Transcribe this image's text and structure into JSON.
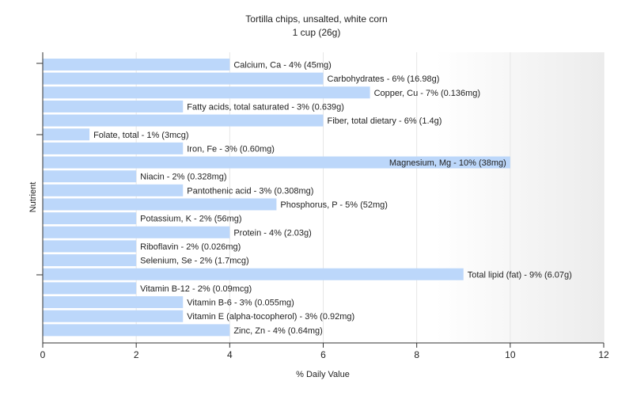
{
  "chart_data": {
    "type": "bar",
    "orientation": "horizontal",
    "title": "Tortilla chips, unsalted, white corn",
    "subtitle": "1 cup (26g)",
    "xlabel": "% Daily Value",
    "ylabel": "Nutrient",
    "xlim": [
      0,
      12
    ],
    "xticks": [
      0,
      2,
      4,
      6,
      8,
      10,
      12
    ],
    "grid": "vertical",
    "bar_color": "#bcd7fa",
    "categories": [
      "Calcium, Ca",
      "Carbohydrates",
      "Copper, Cu",
      "Fatty acids, total saturated",
      "Fiber, total dietary",
      "Folate, total",
      "Iron, Fe",
      "Magnesium, Mg",
      "Niacin",
      "Pantothenic acid",
      "Phosphorus, P",
      "Potassium, K",
      "Protein",
      "Riboflavin",
      "Selenium, Se",
      "Total lipid (fat)",
      "Vitamin B-12",
      "Vitamin B-6",
      "Vitamin E (alpha-tocopherol)",
      "Zinc, Zn"
    ],
    "values": [
      4,
      6,
      7,
      3,
      6,
      1,
      3,
      10,
      2,
      3,
      5,
      2,
      4,
      2,
      2,
      9,
      2,
      3,
      3,
      4
    ],
    "labels": [
      "Calcium, Ca - 4% (45mg)",
      "Carbohydrates - 6% (16.98g)",
      "Copper, Cu - 7% (0.136mg)",
      "Fatty acids, total saturated - 3% (0.639g)",
      "Fiber, total dietary - 6% (1.4g)",
      "Folate, total - 1% (3mcg)",
      "Iron, Fe - 3% (0.60mg)",
      "Magnesium, Mg - 10% (38mg)",
      "Niacin - 2% (0.328mg)",
      "Pantothenic acid - 3% (0.308mg)",
      "Phosphorus, P - 5% (52mg)",
      "Potassium, K - 2% (56mg)",
      "Protein - 4% (2.03g)",
      "Riboflavin - 2% (0.026mg)",
      "Selenium, Se - 2% (1.7mcg)",
      "Total lipid (fat) - 9% (6.07g)",
      "Vitamin B-12 - 2% (0.09mcg)",
      "Vitamin B-6 - 3% (0.055mg)",
      "Vitamin E (alpha-tocopherol) - 3% (0.92mg)",
      "Zinc, Zn - 4% (0.64mg)"
    ]
  }
}
